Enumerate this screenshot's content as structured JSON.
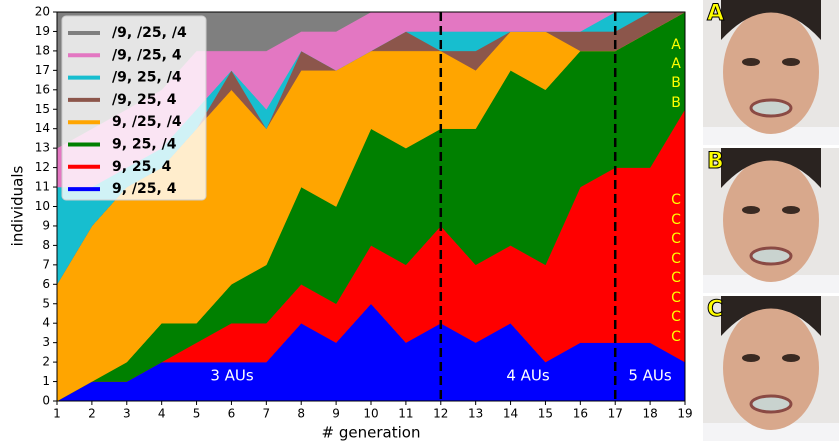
{
  "chart_data": {
    "type": "stacked-area",
    "x": [
      1,
      2,
      3,
      4,
      5,
      6,
      7,
      8,
      9,
      10,
      11,
      12,
      13,
      14,
      15,
      16,
      17,
      18,
      19
    ],
    "series": [
      {
        "name": "9, /25, 4",
        "color": "#0000ff",
        "values": [
          0,
          1,
          1,
          2,
          2,
          2,
          2,
          4,
          3,
          5,
          3,
          4,
          3,
          4,
          2,
          3,
          3,
          3,
          2
        ]
      },
      {
        "name": "9, 25, 4",
        "color": "#ff0000",
        "values": [
          0,
          0,
          0,
          0,
          1,
          2,
          2,
          2,
          2,
          3,
          4,
          5,
          4,
          4,
          5,
          8,
          9,
          9,
          13
        ]
      },
      {
        "name": "9, 25, /4",
        "color": "#008000",
        "values": [
          0,
          0,
          1,
          2,
          1,
          2,
          3,
          5,
          5,
          6,
          6,
          5,
          7,
          9,
          9,
          7,
          6,
          7,
          5
        ]
      },
      {
        "name": "9, /25, /4",
        "color": "#ffa500",
        "values": [
          6,
          8,
          9,
          8,
          10,
          10,
          7,
          6,
          7,
          4,
          5,
          4,
          3,
          2,
          3,
          0,
          0,
          0,
          0
        ]
      },
      {
        "name": "/9, 25, 4",
        "color": "#8c564b",
        "values": [
          0,
          0,
          0,
          0,
          0,
          1,
          0,
          1,
          0,
          0,
          1,
          0,
          1,
          0,
          0,
          1,
          1,
          1,
          0
        ]
      },
      {
        "name": "/9, 25, /4",
        "color": "#17becf",
        "values": [
          5,
          2,
          1,
          1,
          1,
          0,
          1,
          0,
          0,
          0,
          0,
          1,
          1,
          0,
          0,
          0,
          1,
          0,
          0
        ]
      },
      {
        "name": "/9, /25, 4",
        "color": "#e377c2",
        "values": [
          2,
          3,
          3,
          3,
          3,
          1,
          3,
          1,
          2,
          2,
          1,
          1,
          1,
          1,
          1,
          1,
          0,
          0,
          0
        ]
      },
      {
        "name": "/9, /25, /4",
        "color": "#7f7f7f",
        "values": [
          7,
          6,
          5,
          4,
          2,
          2,
          2,
          1,
          1,
          0,
          0,
          0,
          0,
          0,
          0,
          0,
          0,
          0,
          0
        ]
      }
    ],
    "xlabel": "# generation",
    "ylabel": "individuals",
    "xlim": [
      1,
      19
    ],
    "ylim": [
      0,
      20
    ],
    "xticks": [
      1,
      2,
      3,
      4,
      5,
      6,
      7,
      8,
      9,
      10,
      11,
      12,
      13,
      14,
      15,
      16,
      17,
      18,
      19
    ],
    "yticks": [
      0,
      1,
      2,
      3,
      4,
      5,
      6,
      7,
      8,
      9,
      10,
      11,
      12,
      13,
      14,
      15,
      16,
      17,
      18,
      19,
      20
    ],
    "vlines": [
      12,
      17
    ],
    "annotations": [
      "3 AUs",
      "4 AUs",
      "5 AUs"
    ],
    "side_labels": [
      "A",
      "A",
      "B",
      "B",
      "C",
      "C",
      "C",
      "C",
      "C",
      "C",
      "C",
      "C"
    ],
    "legend": "upper left",
    "panels": [
      "A",
      "B",
      "C"
    ]
  }
}
